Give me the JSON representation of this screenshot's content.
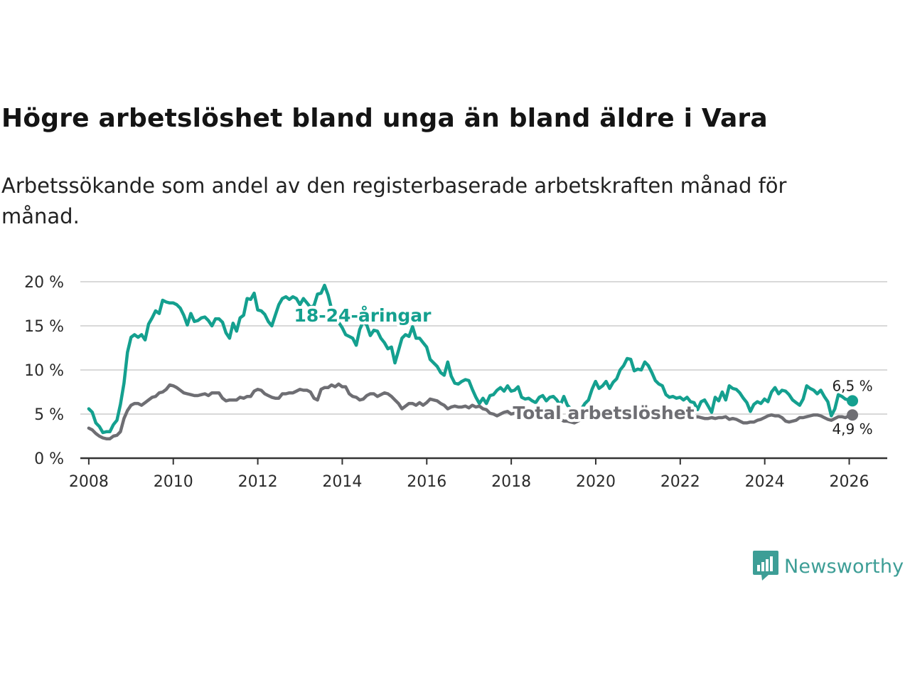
{
  "title": "Högre arbetslöshet bland unga än bland äldre i Vara",
  "subtitle": "Arbetssökande som andel av den registerbaserade arbetskraften månad för månad.",
  "brand": "Newsworthy",
  "colors": {
    "youth": "#14a08f",
    "total": "#6e6e73",
    "grid": "#d9d9d9",
    "axis": "#333333",
    "brand": "#3d9e96"
  },
  "chart_data": {
    "type": "line",
    "title": "Högre arbetslöshet bland unga än bland äldre i Vara",
    "xlabel": "",
    "ylabel": "",
    "xlim": [
      2007.8,
      2026.9
    ],
    "ylim": [
      0,
      20
    ],
    "x_ticks": [
      2008,
      2010,
      2012,
      2014,
      2016,
      2018,
      2020,
      2022,
      2024,
      2026
    ],
    "y_ticks": [
      0,
      5,
      10,
      15,
      20
    ],
    "y_tick_labels": [
      "0 %",
      "5 %",
      "10 %",
      "15 %",
      "20 %"
    ],
    "x_step": 0.0833,
    "x_start": 2008.0,
    "series": [
      {
        "name": "18-24-åringar",
        "end_label": "6,5 %",
        "values": [
          5.6,
          5.2,
          4.0,
          3.6,
          2.9,
          3.0,
          3.0,
          3.8,
          4.3,
          6.1,
          8.5,
          12.0,
          13.7,
          14.0,
          13.7,
          14.0,
          13.4,
          15.2,
          15.9,
          16.7,
          16.4,
          17.9,
          17.7,
          17.6,
          17.6,
          17.4,
          17.0,
          16.2,
          15.1,
          16.4,
          15.5,
          15.6,
          15.9,
          16.0,
          15.6,
          15.0,
          15.8,
          15.8,
          15.4,
          14.2,
          13.6,
          15.3,
          14.4,
          15.9,
          16.2,
          18.1,
          18.0,
          18.7,
          16.8,
          16.7,
          16.3,
          15.5,
          15.0,
          16.2,
          17.4,
          18.1,
          18.3,
          18.0,
          18.3,
          18.1,
          17.4,
          18.1,
          17.6,
          17.1,
          17.3,
          18.6,
          18.7,
          19.6,
          18.5,
          16.9,
          15.9,
          15.4,
          14.8,
          14.0,
          13.8,
          13.6,
          12.8,
          14.6,
          15.5,
          15.1,
          13.9,
          14.5,
          14.4,
          13.6,
          13.1,
          12.4,
          12.6,
          10.8,
          12.2,
          13.6,
          14.0,
          13.8,
          14.9,
          13.6,
          13.6,
          13.1,
          12.6,
          11.2,
          10.8,
          10.4,
          9.7,
          9.4,
          10.9,
          9.3,
          8.5,
          8.4,
          8.7,
          8.9,
          8.8,
          7.8,
          6.9,
          6.2,
          6.8,
          6.2,
          7.1,
          7.2,
          7.7,
          8.0,
          7.6,
          8.2,
          7.6,
          7.7,
          8.1,
          6.9,
          6.7,
          6.8,
          6.5,
          6.3,
          6.9,
          7.1,
          6.5,
          6.9,
          7.0,
          6.6,
          6.0,
          7.0,
          6.0,
          5.6,
          5.2,
          5.0,
          5.6,
          6.2,
          6.6,
          7.8,
          8.7,
          7.9,
          8.2,
          8.7,
          7.9,
          8.6,
          9.0,
          10.0,
          10.5,
          11.3,
          11.2,
          9.9,
          10.1,
          10.0,
          10.9,
          10.5,
          9.7,
          8.8,
          8.4,
          8.2,
          7.2,
          6.9,
          7.0,
          6.8,
          6.9,
          6.6,
          6.9,
          6.4,
          6.3,
          5.5,
          6.4,
          6.6,
          5.9,
          5.2,
          6.9,
          6.5,
          7.5,
          6.6,
          8.2,
          7.9,
          7.8,
          7.4,
          6.8,
          6.3,
          5.3,
          6.1,
          6.4,
          6.2,
          6.7,
          6.4,
          7.5,
          8.0,
          7.3,
          7.7,
          7.6,
          7.2,
          6.6,
          6.3,
          6.0,
          6.7,
          8.2,
          7.9,
          7.7,
          7.3,
          7.7,
          7.0,
          6.4,
          4.8,
          5.6,
          7.2,
          7.0,
          6.7,
          6.6,
          6.5
        ]
      },
      {
        "name": "Total arbetslöshet",
        "end_label": "4,9 %",
        "values": [
          3.4,
          3.2,
          2.8,
          2.5,
          2.3,
          2.2,
          2.2,
          2.5,
          2.6,
          3.0,
          4.5,
          5.4,
          6.0,
          6.2,
          6.2,
          6.0,
          6.3,
          6.6,
          6.9,
          7.0,
          7.4,
          7.5,
          7.8,
          8.3,
          8.2,
          8.0,
          7.7,
          7.4,
          7.3,
          7.2,
          7.1,
          7.1,
          7.2,
          7.3,
          7.1,
          7.4,
          7.4,
          7.4,
          6.8,
          6.5,
          6.6,
          6.6,
          6.6,
          6.9,
          6.8,
          7.0,
          7.0,
          7.6,
          7.8,
          7.7,
          7.3,
          7.1,
          6.9,
          6.8,
          6.8,
          7.3,
          7.3,
          7.4,
          7.4,
          7.6,
          7.8,
          7.7,
          7.7,
          7.5,
          6.8,
          6.6,
          7.8,
          8.0,
          8.0,
          8.3,
          8.1,
          8.4,
          8.1,
          8.1,
          7.3,
          7.0,
          6.9,
          6.6,
          6.7,
          7.1,
          7.3,
          7.3,
          7.0,
          7.2,
          7.4,
          7.3,
          7.0,
          6.6,
          6.2,
          5.6,
          5.9,
          6.2,
          6.2,
          6.0,
          6.3,
          6.0,
          6.3,
          6.7,
          6.6,
          6.5,
          6.2,
          6.0,
          5.6,
          5.8,
          5.9,
          5.8,
          5.8,
          5.9,
          5.7,
          6.0,
          5.8,
          5.9,
          5.6,
          5.5,
          5.1,
          5.0,
          4.8,
          5.0,
          5.2,
          5.3,
          5.0,
          5.1,
          5.1,
          5.3,
          4.9,
          4.9,
          4.8,
          4.7,
          4.8,
          4.7,
          4.6,
          4.6,
          4.5,
          4.5,
          4.4,
          4.2,
          4.2,
          4.1,
          4.0,
          4.2,
          4.4,
          4.6,
          4.8,
          4.9,
          4.8,
          4.8,
          4.9,
          5.0,
          5.0,
          4.9,
          5.0,
          5.0,
          5.1,
          5.0,
          4.9,
          4.8,
          4.8,
          4.9,
          5.0,
          5.1,
          5.0,
          4.9,
          4.9,
          4.9,
          4.9,
          4.8,
          4.8,
          4.7,
          4.7,
          4.6,
          4.6,
          4.6,
          4.6,
          4.7,
          4.6,
          4.5,
          4.5,
          4.6,
          4.5,
          4.6,
          4.6,
          4.7,
          4.4,
          4.5,
          4.4,
          4.2,
          4.0,
          4.0,
          4.1,
          4.1,
          4.3,
          4.4,
          4.6,
          4.8,
          4.9,
          4.8,
          4.8,
          4.6,
          4.2,
          4.1,
          4.2,
          4.3,
          4.6,
          4.6,
          4.7,
          4.8,
          4.9,
          4.9,
          4.8,
          4.6,
          4.4,
          4.3,
          4.5,
          4.7,
          4.7,
          4.6,
          4.8,
          4.9
        ]
      }
    ]
  }
}
